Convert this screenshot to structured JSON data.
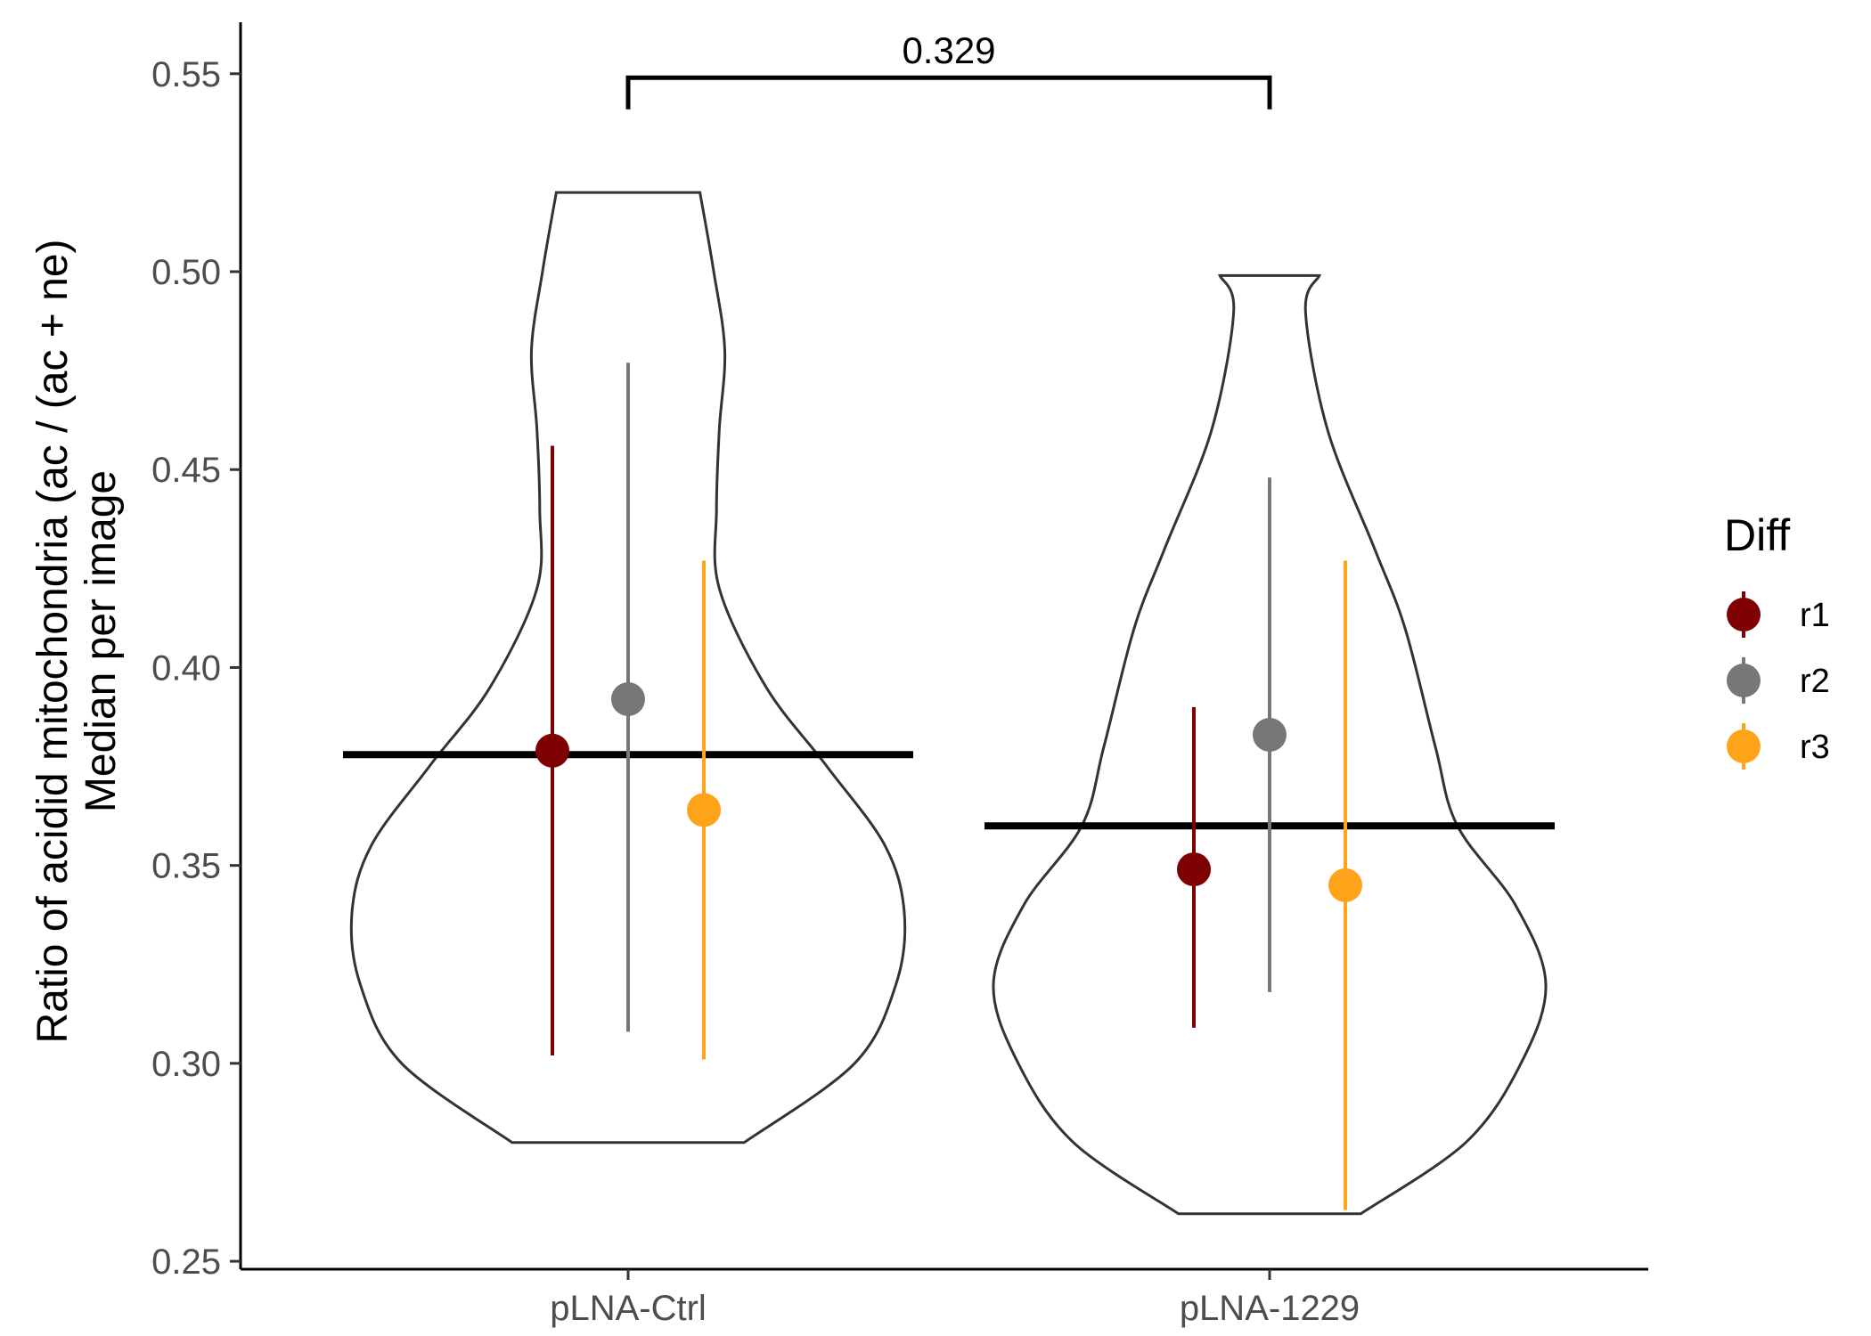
{
  "chart_data": {
    "type": "violin",
    "ylabel_line1": "Ratio of acidid mitochondria (ac / (ac + ne)",
    "ylabel_line2": "Median per image",
    "xlabel": "",
    "ylim": [
      0.248,
      0.563
    ],
    "y_ticks": [
      0.25,
      0.3,
      0.35,
      0.4,
      0.45,
      0.5,
      0.55
    ],
    "y_tick_labels": [
      "0.25",
      "0.30",
      "0.35",
      "0.40",
      "0.45",
      "0.50",
      "0.55"
    ],
    "grid": false,
    "categories": [
      "pLNA-Ctrl",
      "pLNA-1229"
    ],
    "legend": {
      "title": "Diff",
      "placement": "right",
      "items": [
        {
          "label": "r1",
          "color": "#7f0000"
        },
        {
          "label": "r2",
          "color": "#777777"
        },
        {
          "label": "r3",
          "color": "#ffa31a"
        }
      ]
    },
    "violins": [
      {
        "category": "pLNA-Ctrl",
        "min": 0.28,
        "max": 0.52,
        "profile": [
          [
            0.28,
            0.42
          ],
          [
            0.3,
            0.82
          ],
          [
            0.32,
            0.97
          ],
          [
            0.338,
            1.0
          ],
          [
            0.355,
            0.93
          ],
          [
            0.375,
            0.72
          ],
          [
            0.395,
            0.5
          ],
          [
            0.42,
            0.33
          ],
          [
            0.44,
            0.32
          ],
          [
            0.46,
            0.33
          ],
          [
            0.48,
            0.35
          ],
          [
            0.5,
            0.31
          ],
          [
            0.52,
            0.26
          ]
        ],
        "median": 0.378
      },
      {
        "category": "pLNA-1229",
        "min": 0.262,
        "max": 0.499,
        "profile": [
          [
            0.262,
            0.33
          ],
          [
            0.28,
            0.71
          ],
          [
            0.3,
            0.91
          ],
          [
            0.32,
            1.0
          ],
          [
            0.34,
            0.89
          ],
          [
            0.36,
            0.68
          ],
          [
            0.38,
            0.6
          ],
          [
            0.41,
            0.49
          ],
          [
            0.43,
            0.38
          ],
          [
            0.46,
            0.21
          ],
          [
            0.49,
            0.13
          ],
          [
            0.499,
            0.18
          ]
        ],
        "median": 0.36
      }
    ],
    "points": [
      {
        "category": "pLNA-Ctrl",
        "group": "r1",
        "y": 0.379,
        "ymin": 0.302,
        "ymax": 0.456
      },
      {
        "category": "pLNA-Ctrl",
        "group": "r2",
        "y": 0.392,
        "ymin": 0.308,
        "ymax": 0.477
      },
      {
        "category": "pLNA-Ctrl",
        "group": "r3",
        "y": 0.364,
        "ymin": 0.301,
        "ymax": 0.427
      },
      {
        "category": "pLNA-1229",
        "group": "r1",
        "y": 0.349,
        "ymin": 0.309,
        "ymax": 0.39
      },
      {
        "category": "pLNA-1229",
        "group": "r2",
        "y": 0.383,
        "ymin": 0.318,
        "ymax": 0.448
      },
      {
        "category": "pLNA-1229",
        "group": "r3",
        "y": 0.345,
        "ymin": 0.263,
        "ymax": 0.427
      }
    ],
    "comparison": {
      "from": "pLNA-Ctrl",
      "to": "pLNA-1229",
      "label": "0.329",
      "y": 0.549,
      "tip_y": 0.541
    }
  }
}
